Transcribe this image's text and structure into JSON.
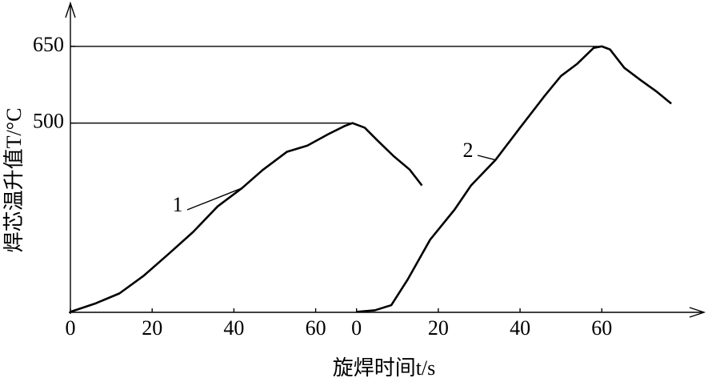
{
  "chart_data": {
    "type": "line",
    "y_label": "焊芯温升值T/°C",
    "x_label": "旋焊时间t/s",
    "ylim": [
      130,
      725
    ],
    "yticks": [
      500,
      650
    ],
    "xaxes": [
      {
        "xlim": [
          0,
          155
        ],
        "xticks": [
          0,
          20,
          40,
          60
        ]
      },
      {
        "xlim": [
          -70,
          85
        ],
        "xticks": [
          0,
          20,
          40,
          60
        ]
      }
    ],
    "series": [
      {
        "name": "1",
        "color": "#000000",
        "xaxis": 0,
        "x": [
          0,
          6,
          12,
          18,
          24,
          30,
          36,
          42,
          47,
          53,
          58,
          63,
          67,
          69,
          72,
          75,
          79,
          83,
          86
        ],
        "values": [
          131,
          147,
          167,
          202,
          244,
          287,
          337,
          373,
          408,
          444,
          456,
          478,
          494,
          500,
          491,
          467,
          436,
          409,
          378
        ]
      },
      {
        "name": "2",
        "color": "#000000",
        "xaxis": 1,
        "x": [
          0,
          4.5,
          8.5,
          12.5,
          18,
          24,
          28,
          34,
          40,
          46,
          50,
          54,
          58,
          60,
          62,
          65.5,
          69.5,
          73.5,
          77
        ],
        "values": [
          131,
          134,
          144,
          194,
          272,
          331,
          378,
          428,
          491,
          553,
          592,
          616,
          647,
          650,
          644,
          608,
          584,
          561,
          538
        ]
      }
    ]
  }
}
